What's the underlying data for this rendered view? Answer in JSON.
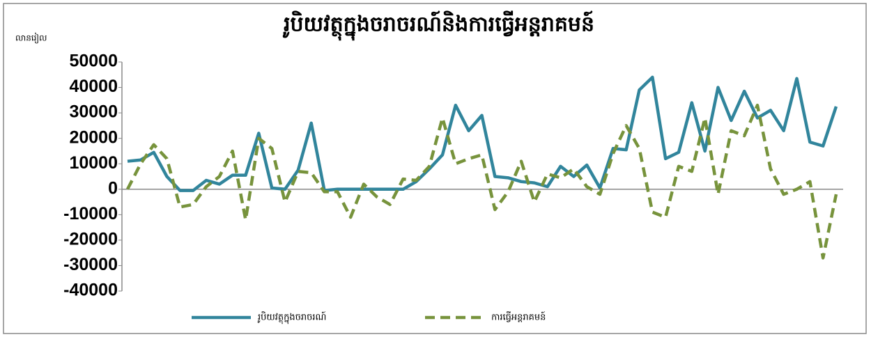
{
  "chart_data": {
    "type": "line",
    "title": "រូបិយវត្ថុក្នុងចរាចរណ៍និងការធ្វើអន្តរាគមន៍",
    "y_label": "លានរៀល",
    "ylim": [
      -40000,
      50000
    ],
    "yticks": [
      -40000,
      -30000,
      -20000,
      -10000,
      0,
      10000,
      20000,
      30000,
      40000,
      50000
    ],
    "series": [
      {
        "name": "រូបិយវត្ថុក្នុងចរាចរណ៍",
        "color": "#31859c",
        "dash": false,
        "values": [
          11000,
          11500,
          14500,
          5000,
          -500,
          -500,
          3500,
          2000,
          5500,
          5500,
          22000,
          500,
          0,
          7500,
          26000,
          -500,
          0,
          0,
          0,
          0,
          0,
          0,
          3000,
          8000,
          13500,
          33000,
          23000,
          29000,
          5000,
          4500,
          3000,
          2500,
          1000,
          9000,
          5000,
          9500,
          500,
          16000,
          15500,
          39000,
          44000,
          12000,
          14500,
          34000,
          15000,
          40000,
          27000,
          38500,
          28000,
          31000,
          23000,
          43500,
          18500,
          17000,
          32500
        ]
      },
      {
        "name": "ការធ្វើអន្តរាគមន៍",
        "color": "#77933c",
        "dash": true,
        "values": [
          0,
          10000,
          17500,
          12000,
          -7000,
          -6000,
          1000,
          5000,
          15000,
          -12000,
          20000,
          16000,
          -5000,
          7000,
          6500,
          -1000,
          -1000,
          -11000,
          2000,
          -3000,
          -6000,
          4000,
          3500,
          9000,
          28000,
          10000,
          12000,
          13500,
          -8000,
          -1000,
          11000,
          -5000,
          6000,
          4500,
          8000,
          1000,
          -2000,
          14000,
          25000,
          16000,
          -9000,
          -11000,
          9000,
          7000,
          28000,
          -2000,
          23000,
          21000,
          33000,
          8000,
          -2000,
          0,
          3000,
          -27000,
          -2000
        ]
      }
    ]
  }
}
